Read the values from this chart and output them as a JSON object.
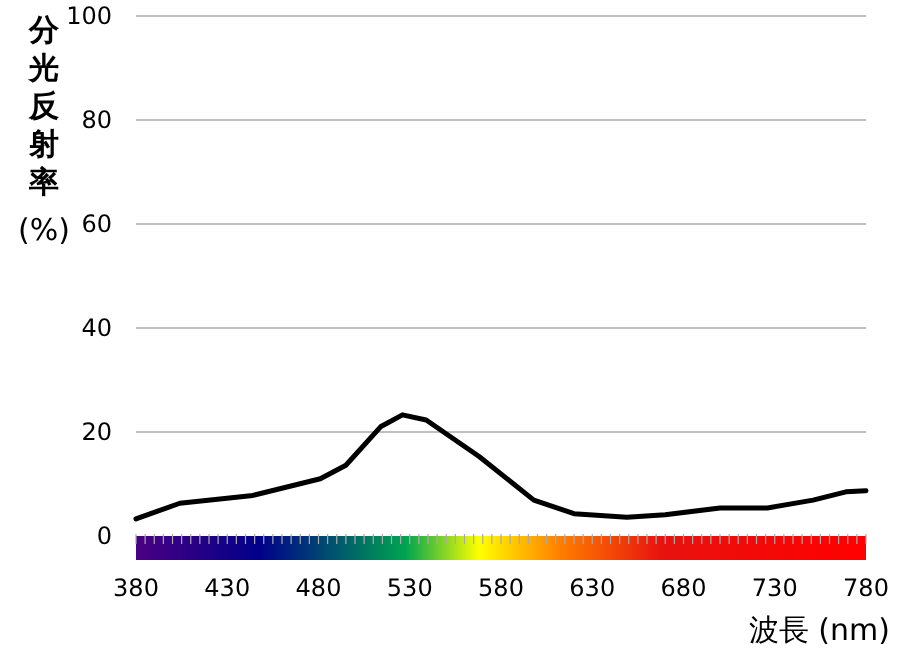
{
  "chart_data": {
    "type": "line",
    "xlabel": "波長 (nm)",
    "ylabel": "分光反射率 (%)",
    "xlim": [
      380,
      780
    ],
    "xticks": [
      380,
      430,
      480,
      530,
      580,
      630,
      680,
      730,
      780
    ],
    "ylim": [
      0,
      100
    ],
    "yticks": [
      0,
      20,
      40,
      60,
      80,
      100
    ],
    "grid": "y",
    "marker": "none",
    "line_style": "solid",
    "series": [
      {
        "color": "#000000",
        "x": [
          380,
          404,
          444,
          481,
          495,
          514,
          526,
          539,
          568,
          598,
          620,
          649,
          670,
          700,
          726,
          751,
          769,
          780
        ],
        "values": [
          3.3,
          6.3,
          7.8,
          11,
          13.6,
          21,
          23.3,
          22.3,
          15.3,
          6.9,
          4.3,
          3.6,
          4.1,
          5.4,
          5.4,
          6.9,
          8.5,
          8.7
        ]
      }
    ]
  }
}
